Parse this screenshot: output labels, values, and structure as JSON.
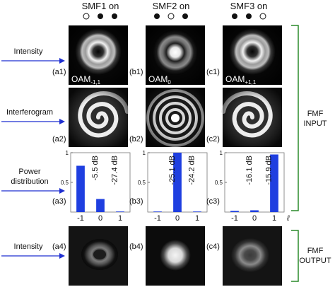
{
  "columns": [
    {
      "title": "SMF1 on",
      "dots": [
        "open",
        "filled",
        "filled"
      ]
    },
    {
      "title": "SMF2 on",
      "dots": [
        "filled",
        "open",
        "filled"
      ]
    },
    {
      "title": "SMF3 on",
      "dots": [
        "filled",
        "filled",
        "open"
      ]
    }
  ],
  "rows": {
    "intensity_label": "Intensity",
    "interferogram_label": "Interferogram",
    "power_label_line1": "Power",
    "power_label_line2": "distribution",
    "output_intensity_label": "Intensity"
  },
  "panel_labels": {
    "a1": "(a1)",
    "b1": "(b1)",
    "c1": "(c1)",
    "a2": "(a2)",
    "b2": "(b2)",
    "c2": "(c2)",
    "a3": "(a3)",
    "b3": "(b3)",
    "c3": "(c3)",
    "a4": "(a4)",
    "b4": "(b4)",
    "c4": "(c4)"
  },
  "oam_labels": {
    "a1": {
      "base": "OAM",
      "sub": "-1,1"
    },
    "b1": {
      "base": "OAM",
      "sub": "0"
    },
    "c1": {
      "base": "OAM",
      "sub": "+1,1"
    }
  },
  "brackets": {
    "input_line1": "FMF",
    "input_line2": "INPUT",
    "output_line1": "FMF",
    "output_line2": "OUTPUT"
  },
  "colors": {
    "arrow": "#1f2fd0",
    "bar": "#1f3fe0",
    "bracket": "#2a8a2a"
  },
  "chart_data": [
    {
      "type": "bar",
      "panel": "a3",
      "categories": [
        "-1",
        "0",
        "1"
      ],
      "values": [
        0.78,
        0.22,
        0.0
      ],
      "ylim": [
        0,
        1
      ],
      "yticks": [
        "0.5",
        "1"
      ],
      "annotations": [
        "-5.5 dB",
        "-27.4 dB"
      ]
    },
    {
      "type": "bar",
      "panel": "b3",
      "categories": [
        "-1",
        "0",
        "1"
      ],
      "values": [
        0.0,
        1.0,
        0.0
      ],
      "ylim": [
        0,
        1
      ],
      "yticks": [
        "0.5",
        "1"
      ],
      "annotations": [
        "-25.1 dB",
        "-24.2 dB"
      ]
    },
    {
      "type": "bar",
      "panel": "c3",
      "categories": [
        "-1",
        "0",
        "1"
      ],
      "values": [
        0.02,
        0.03,
        0.97
      ],
      "ylim": [
        0,
        1
      ],
      "yticks": [
        "0.5",
        "1"
      ],
      "annotations": [
        "-16.1 dB",
        "-15.9 dB"
      ],
      "xlabel": "ℓ"
    }
  ]
}
